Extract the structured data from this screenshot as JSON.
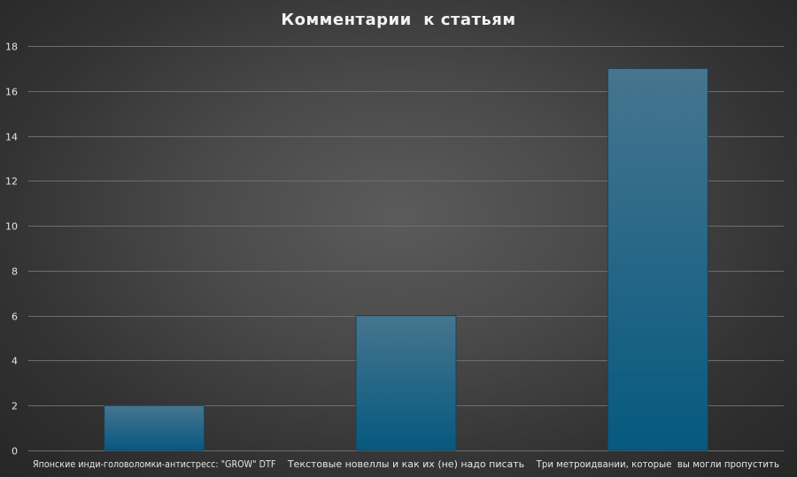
{
  "chart_data": {
    "type": "bar",
    "title": "Комментарии  к статьям",
    "xlabel": "",
    "ylabel": "",
    "categories": [
      "Японские инди-головоломки-антистресс: \"GROW\" DTF",
      "Текстовые новеллы и как их (не) надо писать",
      "Три метроидвании, которые  вы могли пропустить"
    ],
    "values": [
      2,
      6,
      17
    ],
    "ylim": [
      0,
      18
    ],
    "yticks": [
      0,
      2,
      4,
      6,
      8,
      10,
      12,
      14,
      16,
      18
    ],
    "grid": true,
    "legend": "none"
  },
  "colors": {
    "bar_top": "#46758f",
    "bar_bottom": "#06597f",
    "bar_edge": "#1d3f52"
  }
}
